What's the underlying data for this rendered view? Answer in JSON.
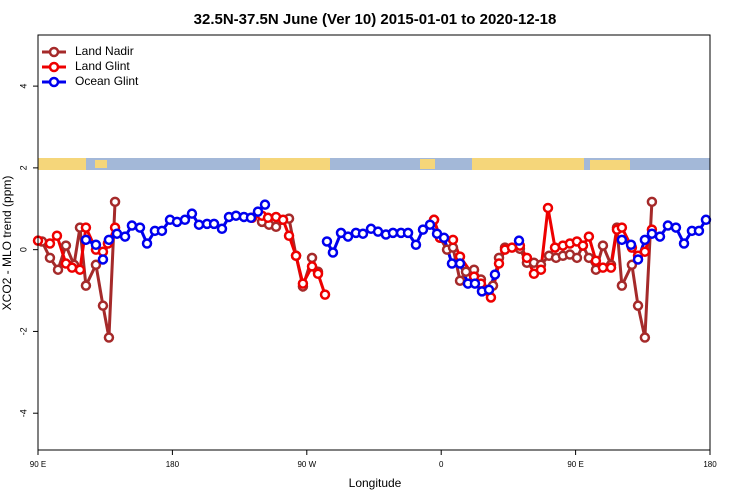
{
  "chart_data": {
    "type": "line",
    "title": "32.5N-37.5N June (Ver 10)   2015-01-01 to 2020-12-18",
    "x_label": "Longitude",
    "y_label": "XCO2 - MLO trend (ppm)",
    "xlim": [
      90,
      540
    ],
    "ylim": [
      -4.9,
      5.25
    ],
    "xticks": [
      {
        "value": 90,
        "label": "90 E"
      },
      180,
      {
        "value": 270,
        "label": "90 W"
      },
      {
        "value": 360,
        "label": "0"
      },
      {
        "value": 450,
        "label": "90 E"
      },
      {
        "value": 540,
        "label": "180"
      }
    ],
    "yticks": [
      -4,
      -2,
      0,
      2,
      4
    ],
    "legend": "top-left",
    "series": [
      {
        "name": "Land Nadir",
        "color": "#a52a2a",
        "x": [
          92.7,
          98.0,
          103.4,
          108.7,
          114.1,
          118.1,
          122.1,
          128.8,
          133.5,
          137.5,
          141.6,
          null,
          240.0,
          244.7,
          249.4,
          258.1,
          262.8,
          267.4,
          273.5,
          277.5,
          null,
          355.2,
          359.2,
          363.9,
          367.9,
          372.6,
          376.6,
          382.0,
          386.6,
          390.7,
          394.7,
          398.7,
          402.7,
          412.7,
          417.4,
          422.1,
          426.8,
          432.2,
          436.9,
          441.5,
          446.2,
          450.9,
          454.9,
          458.9,
          463.6,
          468.3,
          473.7,
          477.7,
          481.0,
          487.7,
          491.8,
          496.4,
          501.1
        ],
        "values": [
          0.2,
          -0.2,
          -0.49,
          0.1,
          -0.37,
          0.54,
          -0.88,
          -0.37,
          -1.37,
          -2.15,
          1.17,
          null,
          0.68,
          0.61,
          0.56,
          0.76,
          -0.15,
          -0.9,
          -0.2,
          -0.54,
          null,
          0.73,
          0.29,
          0,
          0.05,
          -0.76,
          -0.54,
          -0.49,
          -0.73,
          -0.98,
          -0.88,
          -0.2,
          0.05,
          0.02,
          -0.32,
          -0.32,
          -0.37,
          -0.15,
          -0.2,
          -0.15,
          -0.12,
          -0.2,
          0.1,
          -0.2,
          -0.49,
          0.1,
          -0.37,
          0.54,
          -0.88,
          -0.37,
          -1.37,
          -2.15,
          1.17
        ]
      },
      {
        "name": "Land Glint",
        "color": "#ee0000",
        "x": [
          90,
          98.0,
          102.7,
          108.7,
          112.8,
          118.1,
          122.1,
          128.8,
          133.5,
          136.8,
          141.6,
          null,
          233.3,
          240.0,
          244.0,
          249.4,
          254.1,
          258.1,
          262.8,
          267.4,
          273.5,
          277.5,
          282.2,
          null,
          355.2,
          359.2,
          367.9,
          372.6,
          382.0,
          386.6,
          390.7,
          393.3,
          398.7,
          402.7,
          407.4,
          412.7,
          417.4,
          422.1,
          426.8,
          431.5,
          436.2,
          441.5,
          446.2,
          450.9,
          454.9,
          458.9,
          463.6,
          468.3,
          473.7,
          477.7,
          481.0,
          487.7,
          491.8,
          496.4,
          501.1
        ],
        "values": [
          0.22,
          0.15,
          0.34,
          -0.34,
          -0.44,
          -0.49,
          0.54,
          0,
          -0.05,
          0.15,
          0.54,
          null,
          0.78,
          0.83,
          0.78,
          0.8,
          0.73,
          0.34,
          -0.15,
          -0.83,
          -0.41,
          -0.59,
          -1.1,
          null,
          0.73,
          0.29,
          0.24,
          -0.17,
          -0.66,
          -0.83,
          -1.0,
          -1.17,
          -0.34,
          0,
          0.05,
          0.1,
          -0.2,
          -0.59,
          -0.49,
          1.02,
          0.05,
          0.1,
          0.15,
          0.2,
          0.1,
          0.32,
          -0.27,
          -0.44,
          -0.44,
          0.49,
          0.54,
          0.05,
          -0.15,
          -0.05,
          0.49
        ]
      },
      {
        "name": "Ocean Glint",
        "color": "#0000ee",
        "x": [
          122.1,
          128.8,
          133.5,
          137.5,
          142.9,
          148.3,
          152.9,
          158.3,
          163.0,
          168.3,
          173.0,
          178.4,
          183.1,
          188.4,
          193.1,
          197.8,
          203.2,
          207.9,
          213.2,
          217.9,
          222.6,
          227.9,
          232.6,
          237.3,
          242.0,
          null,
          283.5,
          287.5,
          292.9,
          297.6,
          302.9,
          307.6,
          313.0,
          317.7,
          323.0,
          327.7,
          333.1,
          337.8,
          343.1,
          347.8,
          352.5,
          357.2,
          361.9,
          367.2,
          372.6,
          377.9,
          382.6,
          387.3,
          392.0,
          396.0,
          null,
          412.1,
          null,
          481.0,
          487.1,
          491.8,
          496.4,
          501.1,
          506.5,
          511.8,
          517.2,
          522.6,
          527.9,
          532.6,
          537.3
        ],
        "values": [
          0.24,
          0.12,
          -0.24,
          0.24,
          0.39,
          0.32,
          0.59,
          0.54,
          0.15,
          0.46,
          0.46,
          0.73,
          0.68,
          0.73,
          0.88,
          0.61,
          0.63,
          0.63,
          0.51,
          0.8,
          0.83,
          0.8,
          0.78,
          0.93,
          1.1,
          null,
          0.2,
          -0.07,
          0.41,
          0.32,
          0.41,
          0.39,
          0.51,
          0.44,
          0.37,
          0.41,
          0.41,
          0.41,
          0.12,
          0.49,
          0.61,
          0.39,
          0.29,
          -0.34,
          -0.34,
          -0.83,
          -0.83,
          -1.02,
          -0.98,
          -0.61,
          null,
          0.22,
          null,
          0.24,
          0.12,
          -0.24,
          0.24,
          0.39,
          0.32,
          0.59,
          0.54,
          0.15,
          0.46,
          0.46,
          0.73
        ]
      }
    ]
  }
}
